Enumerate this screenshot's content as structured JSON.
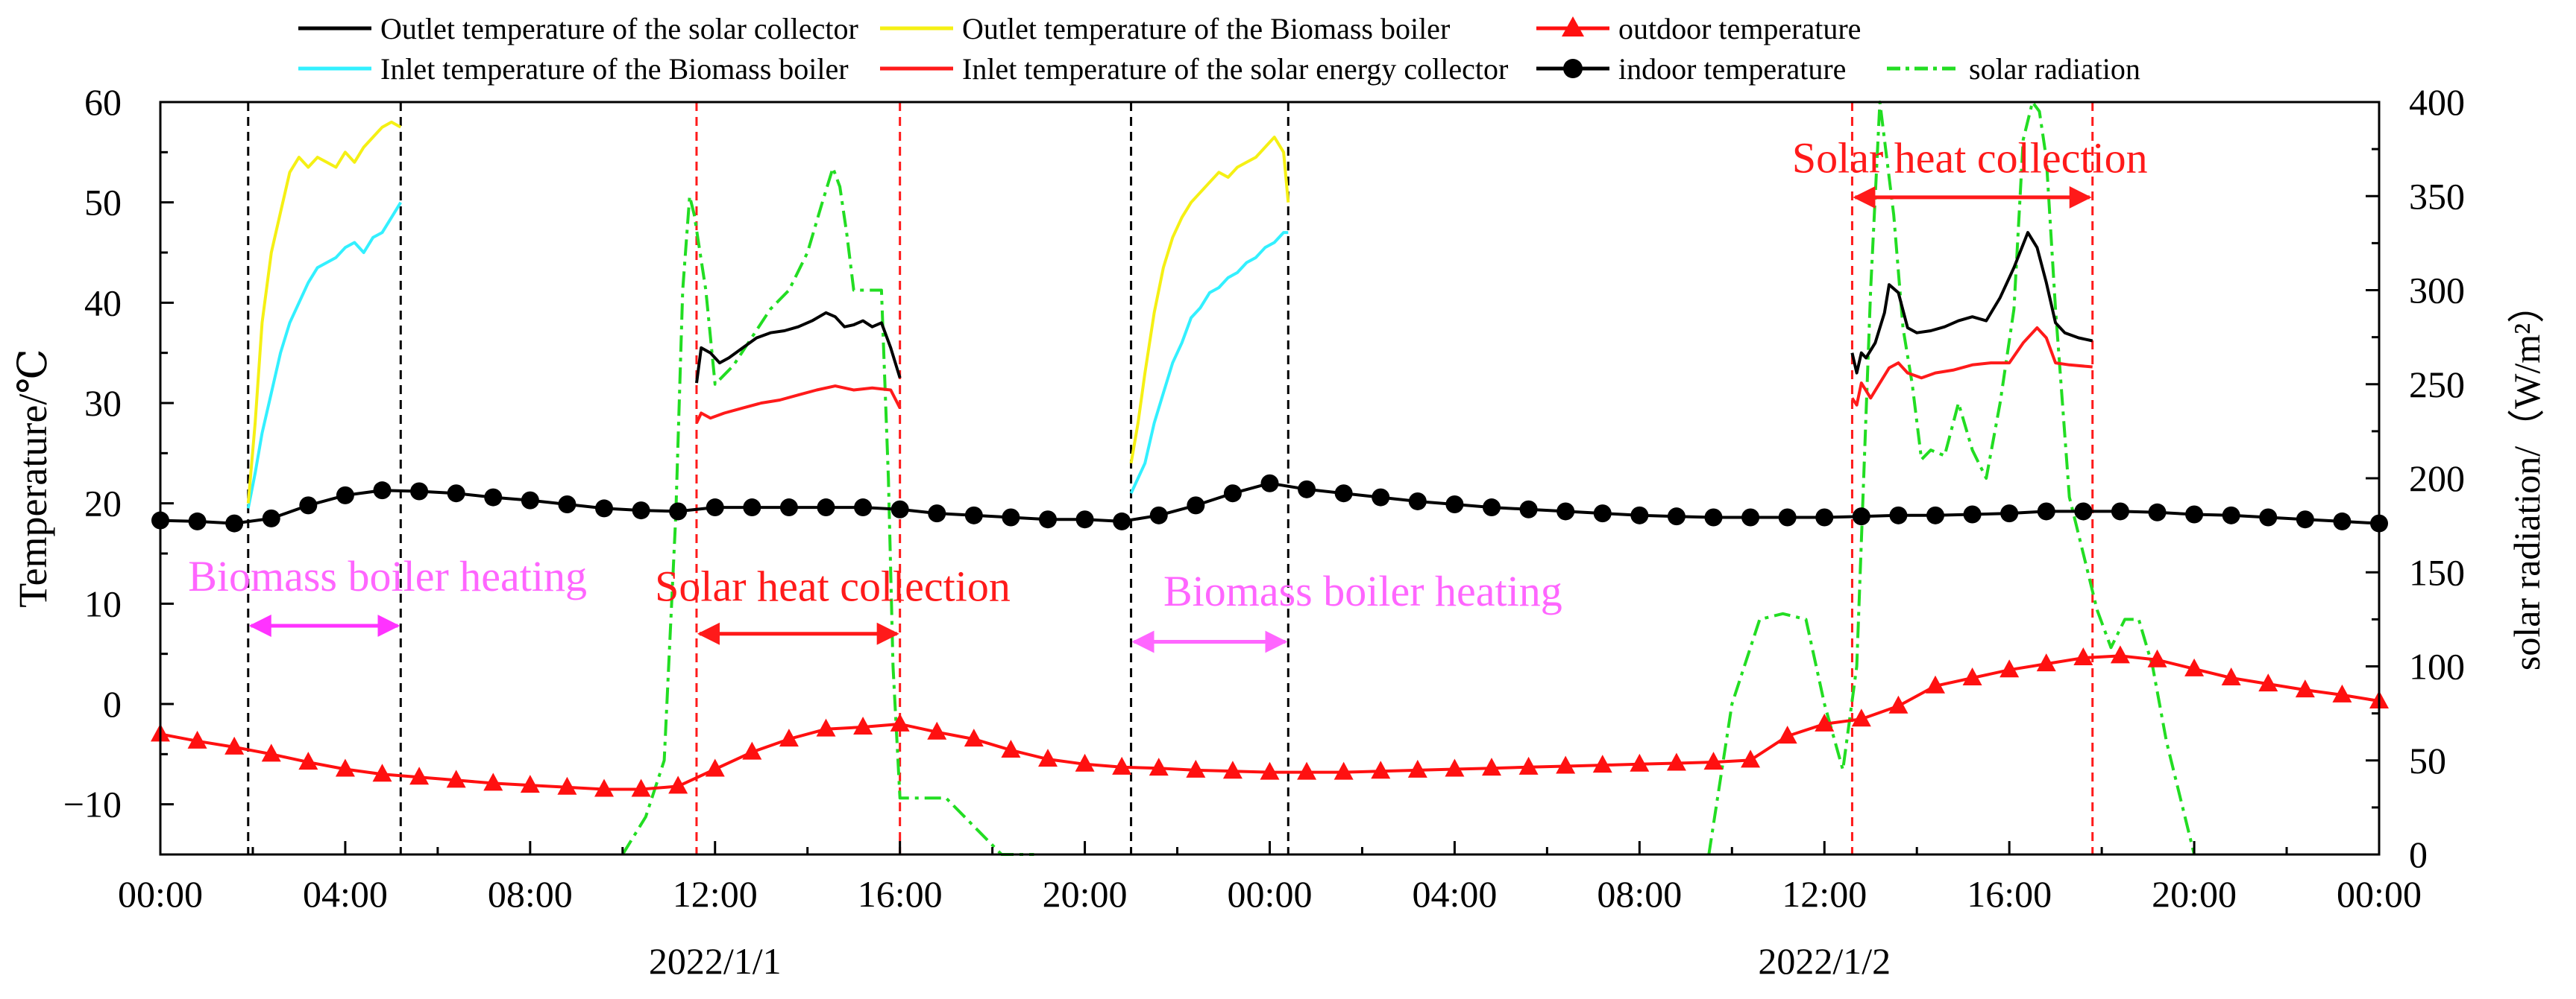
{
  "chart_data": {
    "type": "line",
    "title": "",
    "xlabel": "",
    "ylabel": "Temperature/℃",
    "y2label": "solar radiation/（W/m²）",
    "x_unit": "hours since 2022/1/1 00:00",
    "xlim": [
      0,
      48
    ],
    "ylim": [
      -15,
      60
    ],
    "y2lim": [
      0,
      400
    ],
    "grid": false,
    "legend_position": "top",
    "x_ticks": [
      0,
      4,
      8,
      12,
      16,
      20,
      24,
      28,
      32,
      36,
      40,
      44,
      48
    ],
    "x_tick_labels": [
      "00:00",
      "04:00",
      "08:00",
      "12:00",
      "16:00",
      "20:00",
      "00:00",
      "04:00",
      "08:00",
      "12:00",
      "16:00",
      "20:00",
      "00:00"
    ],
    "y_ticks": [
      -10,
      0,
      10,
      20,
      30,
      40,
      50,
      60
    ],
    "y_tick_labels": [
      "−10",
      "0",
      "10",
      "20",
      "30",
      "40",
      "50",
      "60"
    ],
    "y2_ticks": [
      0,
      50,
      100,
      150,
      200,
      250,
      300,
      350,
      400
    ],
    "y2_tick_labels": [
      "0",
      "50",
      "100",
      "150",
      "200",
      "250",
      "300",
      "350",
      "400"
    ],
    "date_labels": [
      {
        "x": 12,
        "text": "2022/1/1"
      },
      {
        "x": 36,
        "text": "2022/1/2"
      }
    ],
    "series": [
      {
        "name": "Outlet temperature of the solar collector",
        "color": "#000000",
        "axis": "left",
        "marker": "none",
        "x": [
          11.6,
          11.7,
          11.9,
          12.1,
          12.3,
          12.6,
          12.9,
          13.2,
          13.5,
          13.8,
          14.1,
          14.4,
          14.6,
          14.8,
          15.0,
          15.2,
          15.4,
          15.6,
          15.8,
          16.0,
          36.6,
          36.7,
          36.8,
          36.9,
          37.1,
          37.3,
          37.4,
          37.6,
          37.8,
          38.0,
          38.3,
          38.6,
          38.9,
          39.2,
          39.5,
          39.8,
          40.1,
          40.4,
          40.6,
          40.8,
          41.0,
          41.2,
          41.5,
          41.8
        ],
        "y": [
          32,
          35.5,
          35,
          34,
          34.5,
          35.5,
          36.5,
          37,
          37.2,
          37.6,
          38.2,
          39.0,
          38.6,
          37.6,
          37.8,
          38.2,
          37.6,
          38.0,
          35.5,
          32.5,
          35,
          33,
          35,
          34.5,
          36,
          39,
          41.8,
          41,
          37.5,
          37,
          37.2,
          37.6,
          38.2,
          38.6,
          38.2,
          40.5,
          43.5,
          47,
          45.5,
          42,
          38,
          37,
          36.5,
          36.2
        ]
      },
      {
        "name": "Inlet temperature of the Biomass boiler",
        "color": "#33f0ff",
        "axis": "left",
        "marker": "none",
        "x": [
          1.9,
          2.05,
          2.2,
          2.4,
          2.6,
          2.8,
          3.0,
          3.2,
          3.4,
          3.6,
          3.8,
          4.0,
          4.2,
          4.4,
          4.6,
          4.8,
          5.0,
          5.2,
          21.0,
          21.15,
          21.3,
          21.5,
          21.7,
          21.9,
          22.1,
          22.3,
          22.5,
          22.7,
          22.9,
          23.1,
          23.3,
          23.5,
          23.7,
          23.9,
          24.1,
          24.3,
          24.4
        ],
        "y": [
          19.5,
          23,
          27,
          31,
          35,
          38,
          40,
          42,
          43.5,
          44,
          44.5,
          45.5,
          46,
          45,
          46.5,
          47,
          48.5,
          50,
          21,
          22.5,
          24,
          28,
          31,
          34,
          36,
          38.5,
          39.5,
          41,
          41.5,
          42.5,
          43,
          44,
          44.5,
          45.5,
          46,
          47,
          47
        ]
      },
      {
        "name": "Outlet temperature of the Biomass boiler",
        "color": "#f5f014",
        "axis": "left",
        "marker": "none",
        "x": [
          1.9,
          2.05,
          2.2,
          2.4,
          2.6,
          2.8,
          3.0,
          3.2,
          3.4,
          3.6,
          3.8,
          4.0,
          4.2,
          4.4,
          4.6,
          4.8,
          5.0,
          5.2,
          21.0,
          21.15,
          21.3,
          21.5,
          21.7,
          21.9,
          22.1,
          22.3,
          22.5,
          22.7,
          22.9,
          23.1,
          23.3,
          23.5,
          23.7,
          23.9,
          24.1,
          24.3,
          24.4
        ],
        "y": [
          20,
          28,
          38,
          45,
          49,
          53,
          54.5,
          53.5,
          54.5,
          54,
          53.5,
          55,
          54,
          55.5,
          56.5,
          57.5,
          58,
          57.5,
          24,
          28,
          33,
          39,
          43.5,
          46.5,
          48.5,
          50,
          51,
          52,
          53,
          52.5,
          53.5,
          54,
          54.5,
          55.5,
          56.5,
          55,
          50
        ]
      },
      {
        "name": "Inlet temperature of the solar energy collector",
        "color": "#ff1a1a",
        "axis": "left",
        "marker": "none",
        "x": [
          11.6,
          11.7,
          11.9,
          12.2,
          12.6,
          13.0,
          13.4,
          13.8,
          14.2,
          14.6,
          15.0,
          15.4,
          15.8,
          16.0,
          36.6,
          36.7,
          36.8,
          37.0,
          37.2,
          37.4,
          37.6,
          37.8,
          38.1,
          38.4,
          38.8,
          39.2,
          39.6,
          40.0,
          40.3,
          40.6,
          40.8,
          41.0,
          41.3,
          41.8
        ],
        "y": [
          28,
          29,
          28.5,
          29,
          29.5,
          30,
          30.3,
          30.8,
          31.3,
          31.7,
          31.3,
          31.5,
          31.3,
          29.5,
          30.5,
          29.8,
          32,
          30.5,
          32,
          33.5,
          34,
          33,
          32.5,
          33,
          33.3,
          33.8,
          34.0,
          34.0,
          36,
          37.5,
          36.5,
          34,
          33.8,
          33.6
        ]
      },
      {
        "name": "outdoor temperature",
        "color": "#ff1010",
        "axis": "left",
        "marker": "triangle",
        "x": [
          0,
          0.8,
          1.6,
          2.4,
          3.2,
          4.0,
          4.8,
          5.6,
          6.4,
          7.2,
          8.0,
          8.8,
          9.6,
          10.4,
          11.2,
          12.0,
          12.8,
          13.6,
          14.4,
          15.2,
          16.0,
          16.8,
          17.6,
          18.4,
          19.2,
          20.0,
          20.8,
          21.6,
          22.4,
          23.2,
          24.0,
          24.8,
          25.6,
          26.4,
          27.2,
          28.0,
          28.8,
          29.6,
          30.4,
          31.2,
          32.0,
          32.8,
          33.6,
          34.4,
          35.2,
          36.0,
          36.8,
          37.6,
          38.4,
          39.2,
          40.0,
          40.8,
          41.6,
          42.4,
          43.2,
          44.0,
          44.8,
          45.6,
          46.4,
          47.2,
          48.0
        ],
        "y": [
          -3,
          -3.7,
          -4.3,
          -5,
          -5.8,
          -6.5,
          -7,
          -7.3,
          -7.6,
          -7.9,
          -8.1,
          -8.3,
          -8.5,
          -8.5,
          -8.2,
          -6.5,
          -4.8,
          -3.5,
          -2.5,
          -2.3,
          -2,
          -2.8,
          -3.5,
          -4.6,
          -5.5,
          -6,
          -6.3,
          -6.4,
          -6.6,
          -6.7,
          -6.8,
          -6.8,
          -6.8,
          -6.7,
          -6.6,
          -6.5,
          -6.4,
          -6.3,
          -6.2,
          -6.1,
          -6.0,
          -5.9,
          -5.8,
          -5.6,
          -3.2,
          -2,
          -1.5,
          -0.2,
          1.8,
          2.6,
          3.4,
          4.0,
          4.6,
          4.8,
          4.4,
          3.5,
          2.6,
          2,
          1.4,
          0.9,
          0.3
        ]
      },
      {
        "name": "indoor temperature",
        "color": "#000000",
        "axis": "left",
        "marker": "circle",
        "x": [
          0,
          0.8,
          1.6,
          2.4,
          3.2,
          4.0,
          4.8,
          5.6,
          6.4,
          7.2,
          8.0,
          8.8,
          9.6,
          10.4,
          11.2,
          12.0,
          12.8,
          13.6,
          14.4,
          15.2,
          16.0,
          16.8,
          17.6,
          18.4,
          19.2,
          20.0,
          20.8,
          21.6,
          22.4,
          23.2,
          24.0,
          24.8,
          25.6,
          26.4,
          27.2,
          28.0,
          28.8,
          29.6,
          30.4,
          31.2,
          32.0,
          32.8,
          33.6,
          34.4,
          35.2,
          36.0,
          36.8,
          37.6,
          38.4,
          39.2,
          40.0,
          40.8,
          41.6,
          42.4,
          43.2,
          44.0,
          44.8,
          45.6,
          46.4,
          47.2,
          48.0
        ],
        "y": [
          18.3,
          18.2,
          18.0,
          18.5,
          19.8,
          20.8,
          21.3,
          21.2,
          21.0,
          20.6,
          20.3,
          19.9,
          19.5,
          19.3,
          19.2,
          19.6,
          19.6,
          19.6,
          19.6,
          19.6,
          19.4,
          19.0,
          18.8,
          18.6,
          18.4,
          18.4,
          18.2,
          18.8,
          19.8,
          21.0,
          22.0,
          21.4,
          21.0,
          20.6,
          20.2,
          19.9,
          19.6,
          19.4,
          19.2,
          19.0,
          18.8,
          18.7,
          18.6,
          18.6,
          18.6,
          18.6,
          18.7,
          18.8,
          18.8,
          18.9,
          19.0,
          19.2,
          19.2,
          19.2,
          19.1,
          18.9,
          18.8,
          18.6,
          18.4,
          18.2,
          18.0
        ]
      },
      {
        "name": "solar radiation",
        "color": "#22dd22",
        "axis": "right",
        "marker": "none",
        "dash": "dashdot",
        "x": [
          10.0,
          10.5,
          10.9,
          11.15,
          11.3,
          11.45,
          11.55,
          11.8,
          12.0,
          12.4,
          12.8,
          13.2,
          13.6,
          14.0,
          14.3,
          14.55,
          14.7,
          14.85,
          15.0,
          15.3,
          15.6,
          15.75,
          15.85,
          16.0,
          16.2,
          16.5,
          17.0,
          18.2,
          18.6,
          18.9,
          33.5,
          34.0,
          34.6,
          35.1,
          35.6,
          36.0,
          36.4,
          36.7,
          37.0,
          37.2,
          37.5,
          37.7,
          37.9,
          38.1,
          38.3,
          38.6,
          38.9,
          39.2,
          39.5,
          39.8,
          40.1,
          40.3,
          40.5,
          40.65,
          40.8,
          41.0,
          41.3,
          41.6,
          41.9,
          42.2,
          42.5,
          42.8,
          43.1,
          43.4,
          43.7,
          44.0
        ],
        "y": [
          0,
          20,
          50,
          180,
          300,
          350,
          340,
          300,
          250,
          260,
          275,
          290,
          300,
          320,
          345,
          365,
          355,
          330,
          300,
          300,
          300,
          200,
          100,
          30,
          30,
          30,
          30,
          0,
          0,
          0,
          0,
          80,
          125,
          128,
          125,
          80,
          45,
          100,
          300,
          400,
          340,
          280,
          250,
          210,
          215,
          212,
          240,
          215,
          200,
          240,
          290,
          380,
          400,
          395,
          370,
          290,
          190,
          160,
          130,
          110,
          125,
          125,
          100,
          60,
          30,
          0
        ]
      }
    ],
    "vlines": [
      {
        "x": 1.9,
        "color": "#000000"
      },
      {
        "x": 5.2,
        "color": "#000000"
      },
      {
        "x": 11.6,
        "color": "#ff1a1a"
      },
      {
        "x": 16.0,
        "color": "#ff1a1a"
      },
      {
        "x": 21.0,
        "color": "#000000"
      },
      {
        "x": 24.4,
        "color": "#000000"
      },
      {
        "x": 36.6,
        "color": "#ff1a1a"
      },
      {
        "x": 41.8,
        "color": "#ff1a1a"
      }
    ],
    "annotations": [
      {
        "text": "Biomass boiler heating",
        "color": "#ff66ff",
        "x": 0.6,
        "y": 11.3,
        "arrow_from": 1.9,
        "arrow_to": 5.2,
        "arrow_y": 7.8,
        "arrow_color": "#ff33ff"
      },
      {
        "text": "Solar heat collection",
        "color": "#ff1a1a",
        "x": 10.7,
        "y": 10.3,
        "arrow_from": 11.6,
        "arrow_to": 16.0,
        "arrow_y": 7.0,
        "arrow_color": "#ff1a1a"
      },
      {
        "text": "Biomass boiler heating",
        "color": "#ff66ff",
        "x": 21.7,
        "y": 9.8,
        "arrow_from": 21.0,
        "arrow_to": 24.4,
        "arrow_y": 6.2,
        "arrow_color": "#ff66ff"
      },
      {
        "text": "Solar heat collection",
        "color": "#ff1a1a",
        "x": 35.3,
        "y": 53.0,
        "arrow_from": 36.6,
        "arrow_to": 41.8,
        "arrow_y": 50.5,
        "arrow_color": "#ff1a1a"
      }
    ]
  }
}
